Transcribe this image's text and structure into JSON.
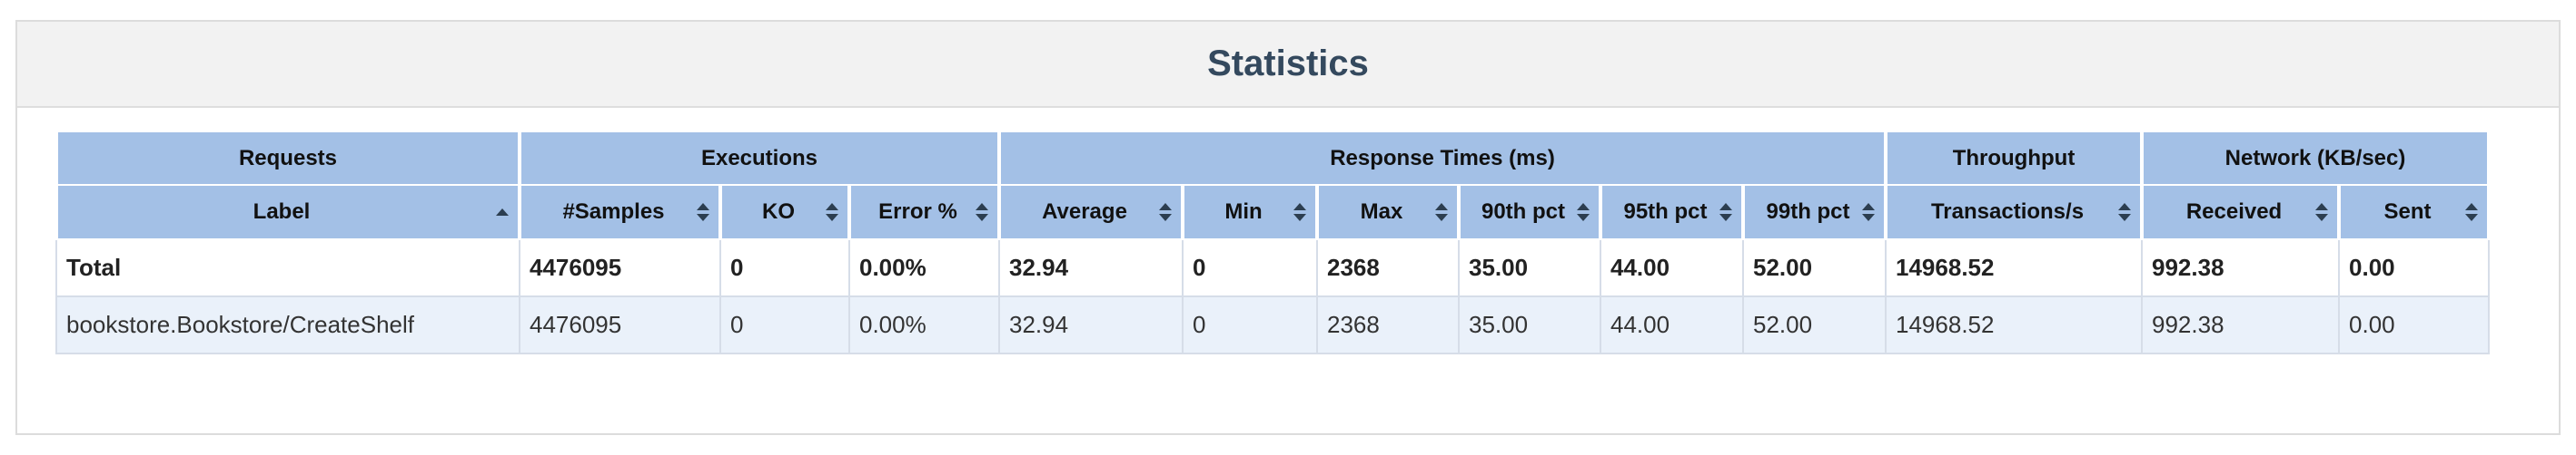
{
  "title": "Statistics",
  "groups": [
    {
      "label": "Requests",
      "span": 1
    },
    {
      "label": "Executions",
      "span": 3
    },
    {
      "label": "Response Times (ms)",
      "span": 6
    },
    {
      "label": "Throughput",
      "span": 1
    },
    {
      "label": "Network (KB/sec)",
      "span": 2
    }
  ],
  "columns": [
    "Label",
    "#Samples",
    "KO",
    "Error %",
    "Average",
    "Min",
    "Max",
    "90th pct",
    "95th pct",
    "99th pct",
    "Transactions/s",
    "Received",
    "Sent"
  ],
  "sort": {
    "column": "Label",
    "direction": "ascending"
  },
  "total_row": [
    "Total",
    "4476095",
    "0",
    "0.00%",
    "32.94",
    "0",
    "2368",
    "35.00",
    "44.00",
    "52.00",
    "14968.52",
    "992.38",
    "0.00"
  ],
  "rows": [
    [
      "bookstore.Bookstore/CreateShelf",
      "4476095",
      "0",
      "0.00%",
      "32.94",
      "0",
      "2368",
      "35.00",
      "44.00",
      "52.00",
      "14968.52",
      "992.38",
      "0.00"
    ]
  ],
  "colors": {
    "header_bg": "#a3c0e6",
    "title": "#34495e",
    "row_alt": "#eaf1fa"
  }
}
